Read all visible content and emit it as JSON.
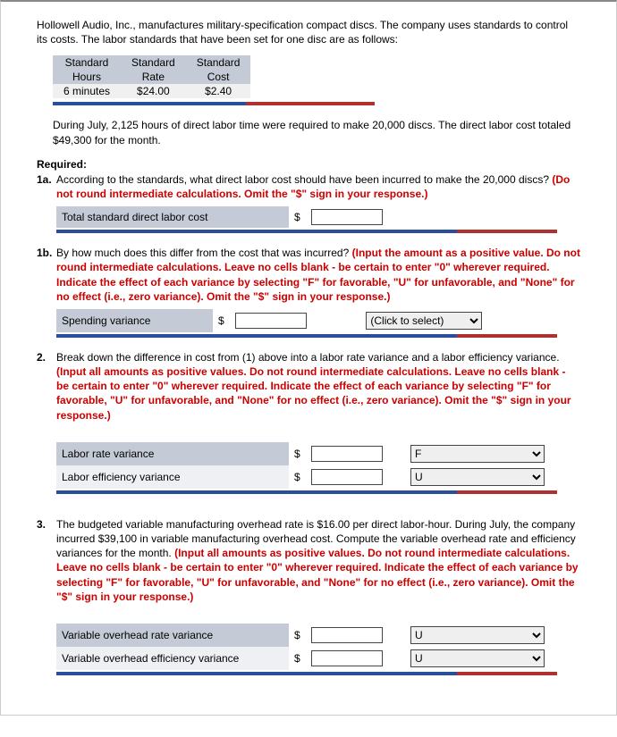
{
  "intro": "Hollowell Audio, Inc., manufactures military-specification compact discs. The company uses standards to control its costs. The labor standards that have been set for one disc are as follows:",
  "std": {
    "h1": "Standard",
    "h1b": "Hours",
    "h2": "Standard",
    "h2b": "Rate",
    "h3": "Standard",
    "h3b": "Cost",
    "v1": "6 minutes",
    "v2": "$24.00",
    "v3": "$2.40"
  },
  "during": "During July, 2,125 hours of direct labor time were required to make 20,000 discs. The direct labor cost totaled $49,300 for the month.",
  "required_label": "Required:",
  "q1a_num": "1a.",
  "q1a_text": "According to the standards, what direct labor cost should have been incurred to make the 20,000 discs? ",
  "q1a_hint": "(Do not round intermediate calculations. Omit the \"$\" sign in your response.)",
  "q1a_rowlabel": "Total standard direct labor cost",
  "dollar": "$",
  "q1b_num": "1b.",
  "q1b_text": "By how much does this differ from the cost that was incurred? ",
  "q1b_hint": "(Input the amount as a positive value. Do not round intermediate calculations. Leave no cells blank - be certain to enter \"0\" wherever required. Indicate the effect of each variance by selecting \"F\" for favorable, \"U\" for unfavorable, and \"None\" for no effect (i.e., zero variance). Omit the \"$\" sign in your response.)",
  "q1b_rowlabel": "Spending variance",
  "q1b_select_placeholder": "(Click to select)",
  "q2_num": "2.",
  "q2_text": "Break down the difference in cost from (1) above into a labor rate variance and a labor efficiency variance. ",
  "q2_hint": "(Input all amounts as positive values. Do not round intermediate calculations. Leave no cells blank - be certain to enter \"0\" wherever required. Indicate the effect of each variance by selecting \"F\" for favorable, \"U\" for unfavorable, and \"None\" for no effect (i.e., zero variance). Omit the \"$\" sign in your response.)",
  "q2_row1": "Labor rate variance",
  "q2_row2": "Labor efficiency variance",
  "q2_sel1": "F",
  "q2_sel2": "U",
  "q3_num": "3.",
  "q3_text": "The budgeted variable manufacturing overhead rate is $16.00 per direct labor-hour. During July, the company incurred $39,100 in variable manufacturing overhead cost. Compute the variable overhead rate and efficiency variances for the month. ",
  "q3_hint": "(Input all amounts as positive values. Do not round intermediate calculations. Leave no cells blank - be certain to enter \"0\" wherever required. Indicate the effect of each variance by selecting \"F\" for favorable, \"U\" for unfavorable, and \"None\" for no effect (i.e., zero variance). Omit the \"$\" sign in your response.)",
  "q3_row1": "Variable overhead rate variance",
  "q3_row2": "Variable overhead efficiency variance",
  "q3_sel1": "U",
  "q3_sel2": "U",
  "opts": {
    "none": "(Click to select)",
    "F": "F",
    "U": "U",
    "N": "None"
  }
}
